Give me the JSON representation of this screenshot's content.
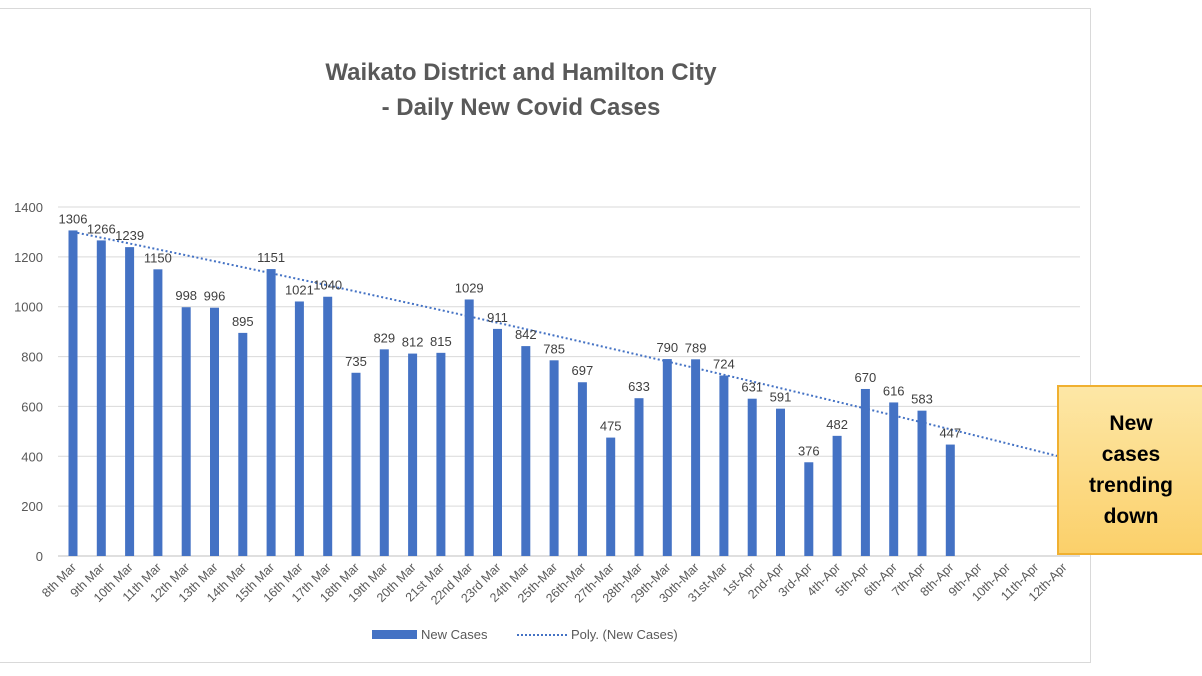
{
  "chart_data": {
    "type": "bar",
    "title_lines": [
      "Waikato District and Hamilton City",
      "- Daily New Covid Cases"
    ],
    "categories": [
      "8th Mar",
      "9th Mar",
      "10th Mar",
      "11th Mar",
      "12th Mar",
      "13th Mar",
      "14th Mar",
      "15th Mar",
      "16th Mar",
      "17th Mar",
      "18th Mar",
      "19th Mar",
      "20th Mar",
      "21st Mar",
      "22nd Mar",
      "23rd Mar",
      "24th Mar",
      "25th-Mar",
      "26th-Mar",
      "27th-Mar",
      "28th-Mar",
      "29th-Mar",
      "30th-Mar",
      "31st-Mar",
      "1st-Apr",
      "2nd-Apr",
      "3rd-Apr",
      "4th-Apr",
      "5th-Apr",
      "6th-Apr",
      "7th-Apr",
      "8th-Apr",
      "9th-Apr",
      "10th-Apr",
      "11th-Apr",
      "12th-Apr"
    ],
    "series": [
      {
        "name": "New Cases",
        "color": "#4472c4",
        "values": [
          1306,
          1266,
          1239,
          1150,
          998,
          996,
          895,
          1151,
          1021,
          1040,
          735,
          829,
          812,
          815,
          1029,
          911,
          842,
          785,
          697,
          475,
          633,
          790,
          789,
          724,
          631,
          591,
          376,
          482,
          670,
          616,
          583,
          447,
          null,
          null,
          null,
          null
        ]
      }
    ],
    "trendline": {
      "name": "Poly. (New Cases)",
      "kind": "polynomial",
      "color": "#4472c4",
      "start": 1300,
      "end": 395
    },
    "ylim": [
      0,
      1400
    ],
    "yticks": [
      0,
      200,
      400,
      600,
      800,
      1000,
      1200,
      1400
    ],
    "grid": true,
    "legend": "bottom"
  },
  "callout": {
    "text": "New cases trending down"
  }
}
